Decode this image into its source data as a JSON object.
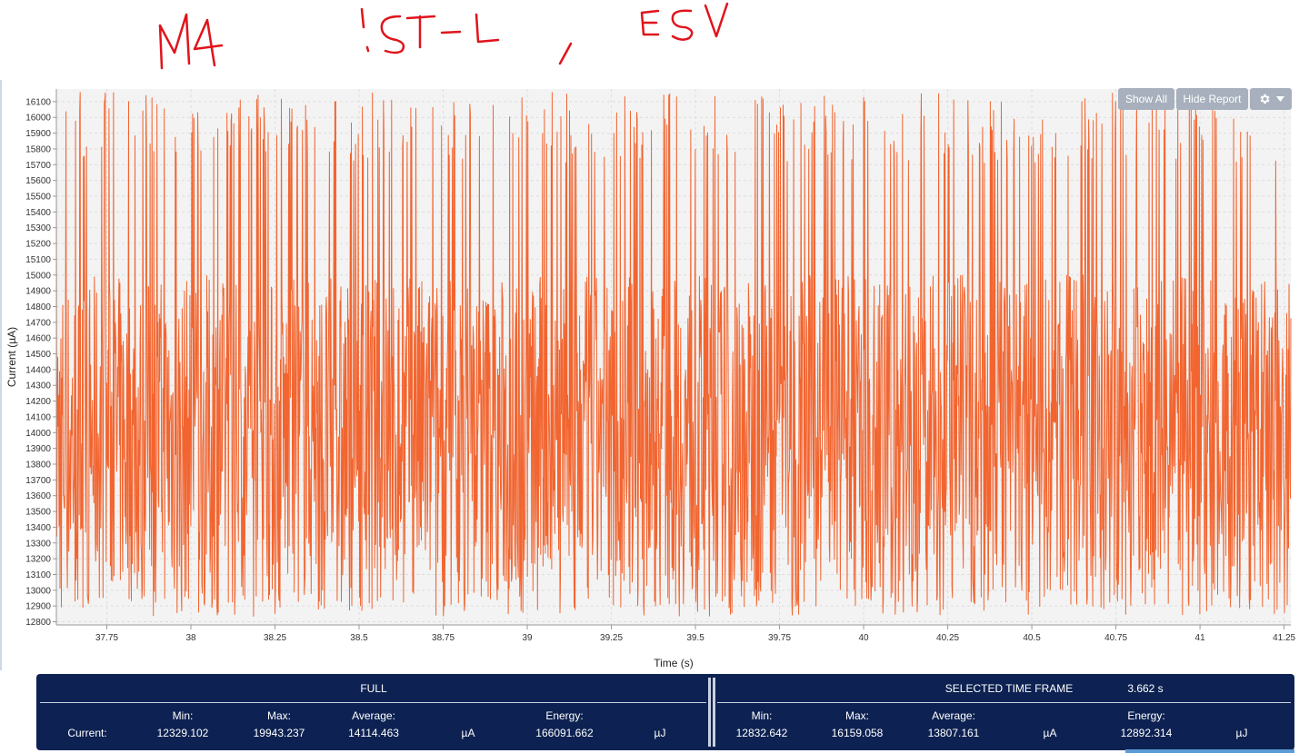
{
  "annotation": {
    "handwritten_text": "M4   !ST-L  ,  E5V"
  },
  "toolbar": {
    "show_all_label": "Show All",
    "hide_report_label": "Hide Report",
    "settings_icon": "gear-icon",
    "dropdown_icon": "caret-down-icon"
  },
  "colors": {
    "series": "#f26530",
    "report_bg": "#0d2252",
    "toolbar_button": "#a7b0bc",
    "plot_bg": "#f3f3f3"
  },
  "chart_data": {
    "type": "line",
    "xlabel": "Time (s)",
    "ylabel": "Current (µA)",
    "xlim": [
      37.6,
      41.27
    ],
    "ylim": [
      12780,
      16180
    ],
    "x_ticks": [
      "37.75",
      "38",
      "38.25",
      "38.5",
      "38.75",
      "39",
      "39.25",
      "39.5",
      "39.75",
      "40",
      "40.25",
      "40.5",
      "40.75",
      "41",
      "41.25"
    ],
    "y_ticks": [
      "12800",
      "12900",
      "13000",
      "13100",
      "13200",
      "13300",
      "13400",
      "13500",
      "13600",
      "13700",
      "13800",
      "13900",
      "14000",
      "14100",
      "14200",
      "14300",
      "14400",
      "14500",
      "14600",
      "14700",
      "14800",
      "14900",
      "15000",
      "15100",
      "15200",
      "15300",
      "15400",
      "15500",
      "15600",
      "15700",
      "15800",
      "15900",
      "16000",
      "16100"
    ],
    "grid": true,
    "series_summary": {
      "dense_band_low": 12900,
      "dense_band_high": 15000,
      "spike_max": 16159.058,
      "dip_min": 12832.642
    }
  },
  "report": {
    "full": {
      "title": "FULL",
      "row_label": "Current:",
      "min_label": "Min:",
      "min_value": "12329.102",
      "max_label": "Max:",
      "max_value": "19943.237",
      "avg_label": "Average:",
      "avg_value": "14114.463",
      "avg_unit": "µA",
      "energy_label": "Energy:",
      "energy_value": "166091.662",
      "energy_unit": "µJ"
    },
    "selected": {
      "title": "SELECTED TIME FRAME",
      "duration": "3.662 s",
      "min_label": "Min:",
      "min_value": "12832.642",
      "max_label": "Max:",
      "max_value": "16159.058",
      "avg_label": "Average:",
      "avg_value": "13807.161",
      "avg_unit": "µA",
      "energy_label": "Energy:",
      "energy_value": "12892.314",
      "energy_unit": "µJ"
    }
  }
}
